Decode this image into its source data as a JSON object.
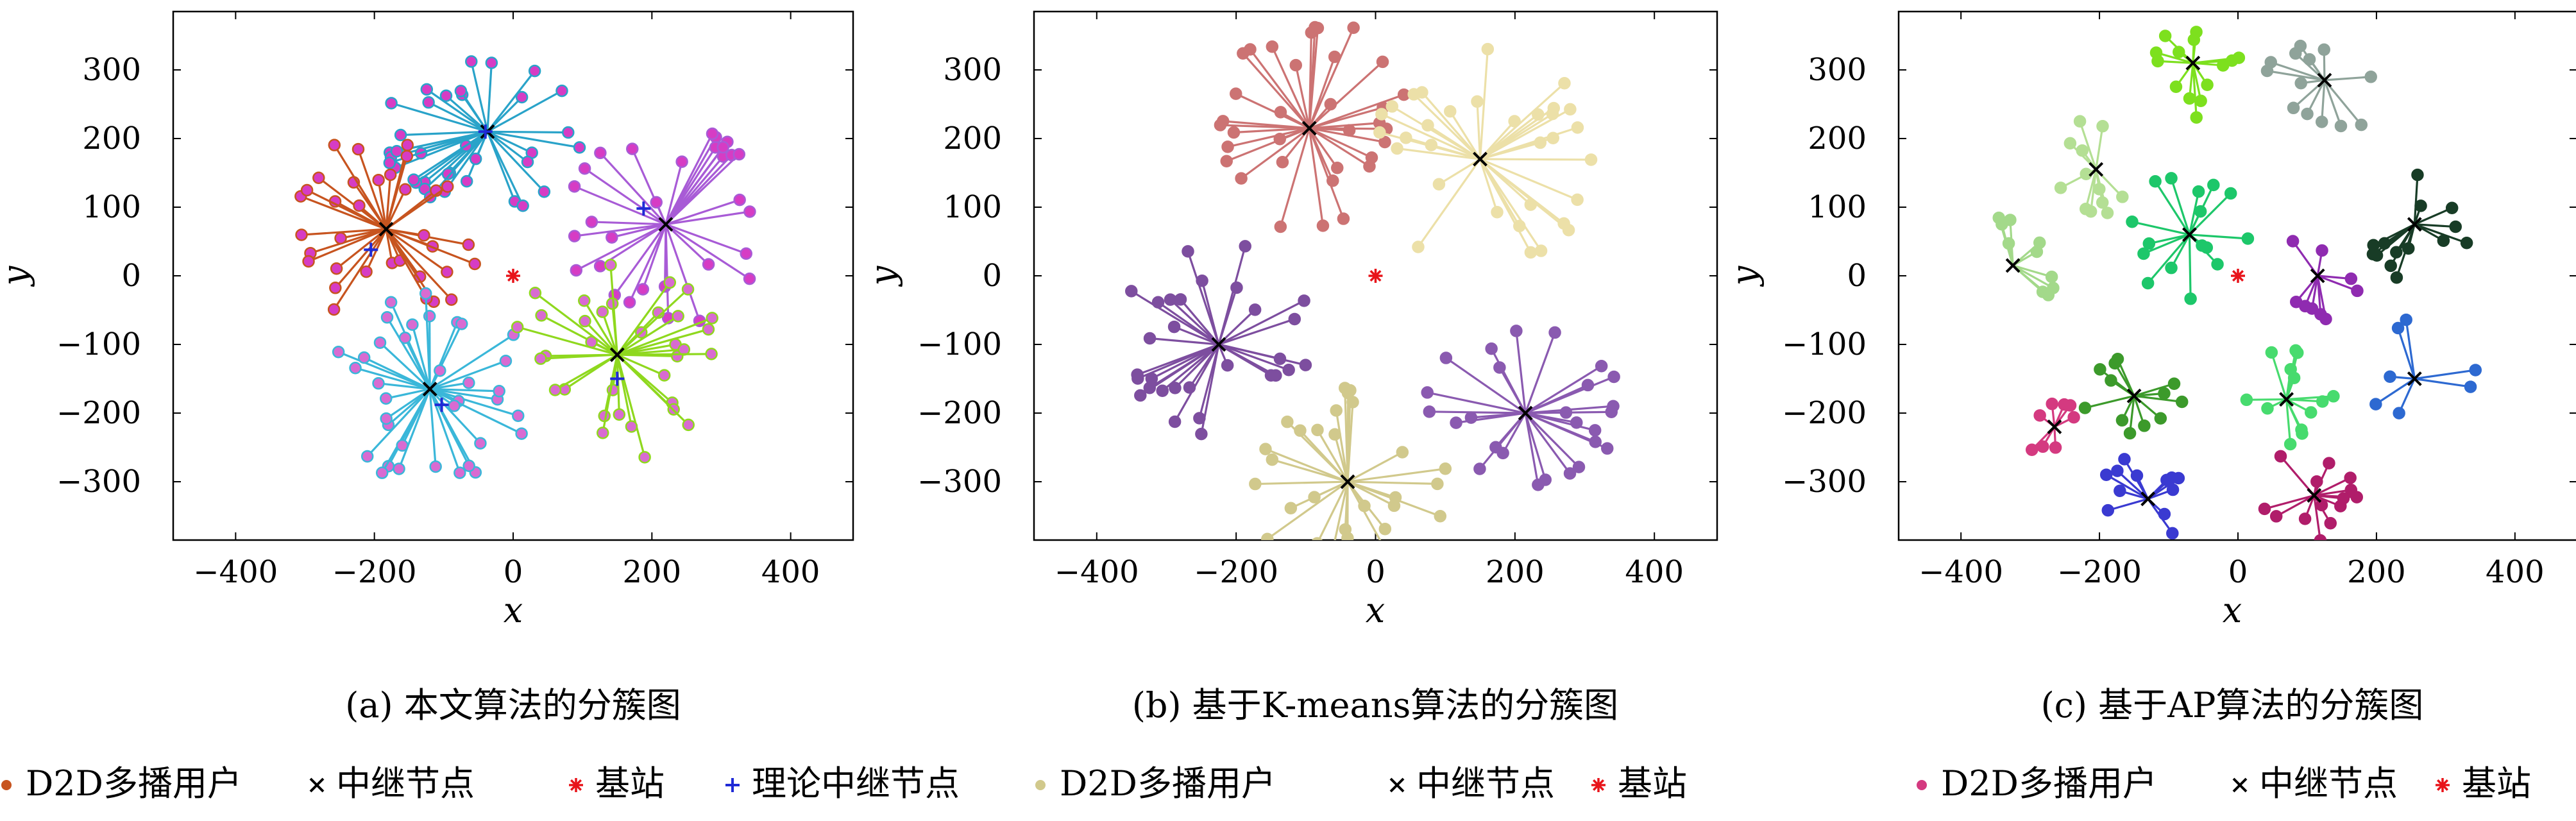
{
  "chart_data": [
    {
      "type": "scatter",
      "caption": "(a) 本文算法的分簇图",
      "xlabel": "x",
      "ylabel": "y",
      "xlim": [
        -490,
        490
      ],
      "ylim": [
        -385,
        385
      ],
      "xticks": [
        -400,
        -200,
        0,
        200,
        400
      ],
      "yticks": [
        -300,
        -200,
        -100,
        0,
        100,
        200,
        300
      ],
      "legend": [
        "D2D多播用户",
        "中继节点",
        "基站",
        "理论中继节点"
      ],
      "base_station": [
        0,
        0
      ],
      "clusters": [
        {
          "relay": [
            -37,
            210
          ],
          "color": "#29a3c9",
          "point_color": "#d63cc4",
          "count": 36,
          "radius": 150
        },
        {
          "relay": [
            -183,
            68
          ],
          "color": "#c7541f",
          "point_color": "#d63cc4",
          "count": 34,
          "radius": 145
        },
        {
          "relay": [
            220,
            75
          ],
          "color": "#a85bd6",
          "point_color": "#d63cc4",
          "count": 30,
          "radius": 150
        },
        {
          "relay": [
            -120,
            -165
          ],
          "color": "#3ab7d9",
          "point_color": "#d86bd1",
          "count": 36,
          "radius": 150
        },
        {
          "relay": [
            150,
            -115
          ],
          "color": "#8fd81e",
          "point_color": "#d86bd1",
          "count": 34,
          "radius": 155
        }
      ],
      "theory_relays": [
        [
          -40,
          210
        ],
        [
          -205,
          38
        ],
        [
          188,
          98
        ],
        [
          -103,
          -188
        ],
        [
          150,
          -150
        ]
      ]
    },
    {
      "type": "scatter",
      "caption": "(b) 基于K-means算法的分簇图",
      "xlabel": "x",
      "ylabel": "y",
      "xlim": [
        -490,
        490
      ],
      "ylim": [
        -385,
        385
      ],
      "xticks": [
        -400,
        -200,
        0,
        200,
        400
      ],
      "yticks": [
        -300,
        -200,
        -100,
        0,
        100,
        200,
        300
      ],
      "legend": [
        "D2D多播用户",
        "中继节点",
        "基站"
      ],
      "base_station": [
        0,
        0
      ],
      "clusters": [
        {
          "relay": [
            -95,
            215
          ],
          "color": "#cc7373",
          "count": 34,
          "radius": 160
        },
        {
          "relay": [
            150,
            170
          ],
          "color": "#ece0a8",
          "count": 32,
          "radius": 165
        },
        {
          "relay": [
            -225,
            -100
          ],
          "color": "#7d4e9f",
          "count": 30,
          "radius": 150
        },
        {
          "relay": [
            215,
            -200
          ],
          "color": "#8a5ab0",
          "count": 26,
          "radius": 150
        },
        {
          "relay": [
            -40,
            -300
          ],
          "color": "#d1c98c",
          "count": 28,
          "radius": 145
        }
      ]
    },
    {
      "type": "scatter",
      "caption": "(c) 基于AP算法的分簇图",
      "xlabel": "x",
      "ylabel": "y",
      "xlim": [
        -490,
        490
      ],
      "ylim": [
        -385,
        385
      ],
      "xticks": [
        -400,
        -200,
        0,
        200,
        400
      ],
      "yticks": [
        -300,
        -200,
        -100,
        0,
        100,
        200,
        300
      ],
      "legend": [
        "D2D多播用户",
        "中继节点",
        "基站"
      ],
      "base_station": [
        0,
        0
      ],
      "clusters": [
        {
          "relay": [
            -65,
            310
          ],
          "color": "#7de01e",
          "count": 14,
          "radius": 80
        },
        {
          "relay": [
            125,
            285
          ],
          "color": "#8fa39a",
          "count": 13,
          "radius": 85
        },
        {
          "relay": [
            -205,
            155
          ],
          "color": "#b4df94",
          "count": 12,
          "radius": 75
        },
        {
          "relay": [
            -325,
            15
          ],
          "color": "#a3d98a",
          "count": 10,
          "radius": 80
        },
        {
          "relay": [
            -70,
            60
          ],
          "color": "#1dc76a",
          "count": 16,
          "radius": 95
        },
        {
          "relay": [
            115,
            0
          ],
          "color": "#8f2bb0",
          "count": 9,
          "radius": 65
        },
        {
          "relay": [
            255,
            75
          ],
          "color": "#183c26",
          "count": 14,
          "radius": 90
        },
        {
          "relay": [
            -150,
            -175
          ],
          "color": "#3c9a2b",
          "count": 12,
          "radius": 75
        },
        {
          "relay": [
            70,
            -180
          ],
          "color": "#47db6e",
          "count": 13,
          "radius": 75
        },
        {
          "relay": [
            255,
            -150
          ],
          "color": "#2d69d1",
          "count": 7,
          "radius": 90
        },
        {
          "relay": [
            -265,
            -220
          ],
          "color": "#d43a80",
          "count": 8,
          "radius": 50
        },
        {
          "relay": [
            -130,
            -325
          ],
          "color": "#3a3ad1",
          "count": 12,
          "radius": 70
        },
        {
          "relay": [
            110,
            -320
          ],
          "color": "#b01d6a",
          "count": 14,
          "radius": 75
        }
      ]
    }
  ]
}
